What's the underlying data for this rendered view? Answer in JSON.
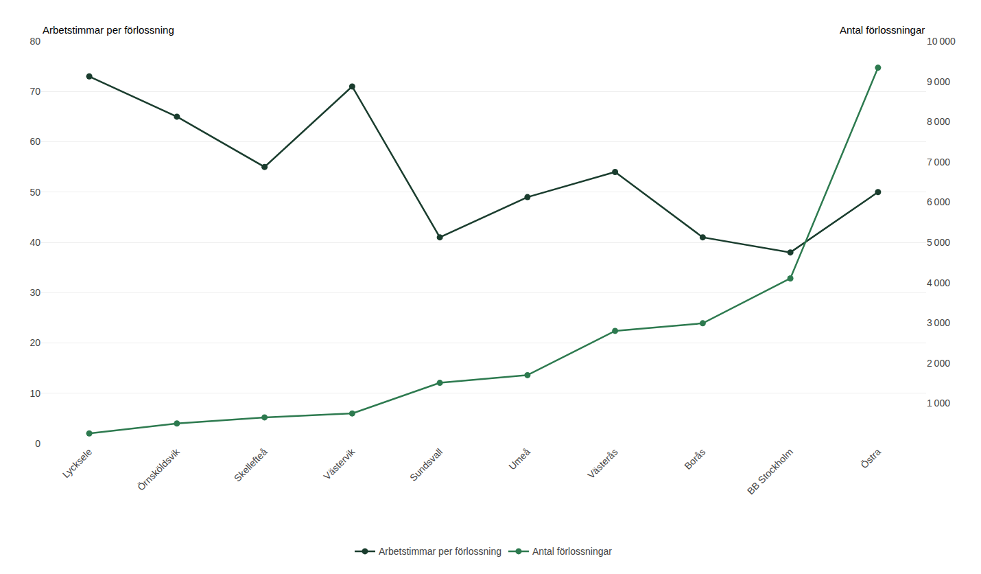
{
  "chart_data": {
    "type": "line",
    "categories": [
      "Lycksele",
      "Örnsköldsvik",
      "Skellefteå",
      "Västervik",
      "Sundsvall",
      "Umeå",
      "Västerås",
      "Borås",
      "BB Stockholm",
      "Östra"
    ],
    "series": [
      {
        "name": "Arbetstimmar per förlossning",
        "color": "#1a3d2e",
        "marker": "circle",
        "line_style": "solid",
        "values": [
          73,
          65,
          55,
          71,
          41,
          49,
          54,
          41,
          38,
          50
        ]
      },
      {
        "name": "Antal förlossningar",
        "color": "#2d7a4f",
        "marker": "circle",
        "line_style": "solid",
        "axis": "y2",
        "values": [
          251,
          500,
          650,
          748,
          1509,
          1700,
          2800,
          2989,
          4105,
          9341
        ]
      }
    ],
    "ylabel": "Arbetstimmar per förlossning",
    "y2label": "Antal förlossningar",
    "ylim": [
      0,
      80
    ],
    "yticks": [
      0,
      10,
      20,
      30,
      40,
      50,
      60,
      70,
      80
    ],
    "y2lim": [
      0,
      10000
    ],
    "y2ticks": [
      {
        "value": 1000,
        "label": "1 000"
      },
      {
        "value": 2000,
        "label": "2 000"
      },
      {
        "value": 3000,
        "label": "3 000"
      },
      {
        "value": 4000,
        "label": "4 000"
      },
      {
        "value": 5000,
        "label": "5 000"
      },
      {
        "value": 6000,
        "label": "6 000"
      },
      {
        "value": 7000,
        "label": "7 000"
      },
      {
        "value": 8000,
        "label": "8 000"
      },
      {
        "value": 9000,
        "label": "9 000"
      },
      {
        "value": 10000,
        "label": "10 000"
      }
    ],
    "grid": true,
    "legend": "bottom"
  }
}
